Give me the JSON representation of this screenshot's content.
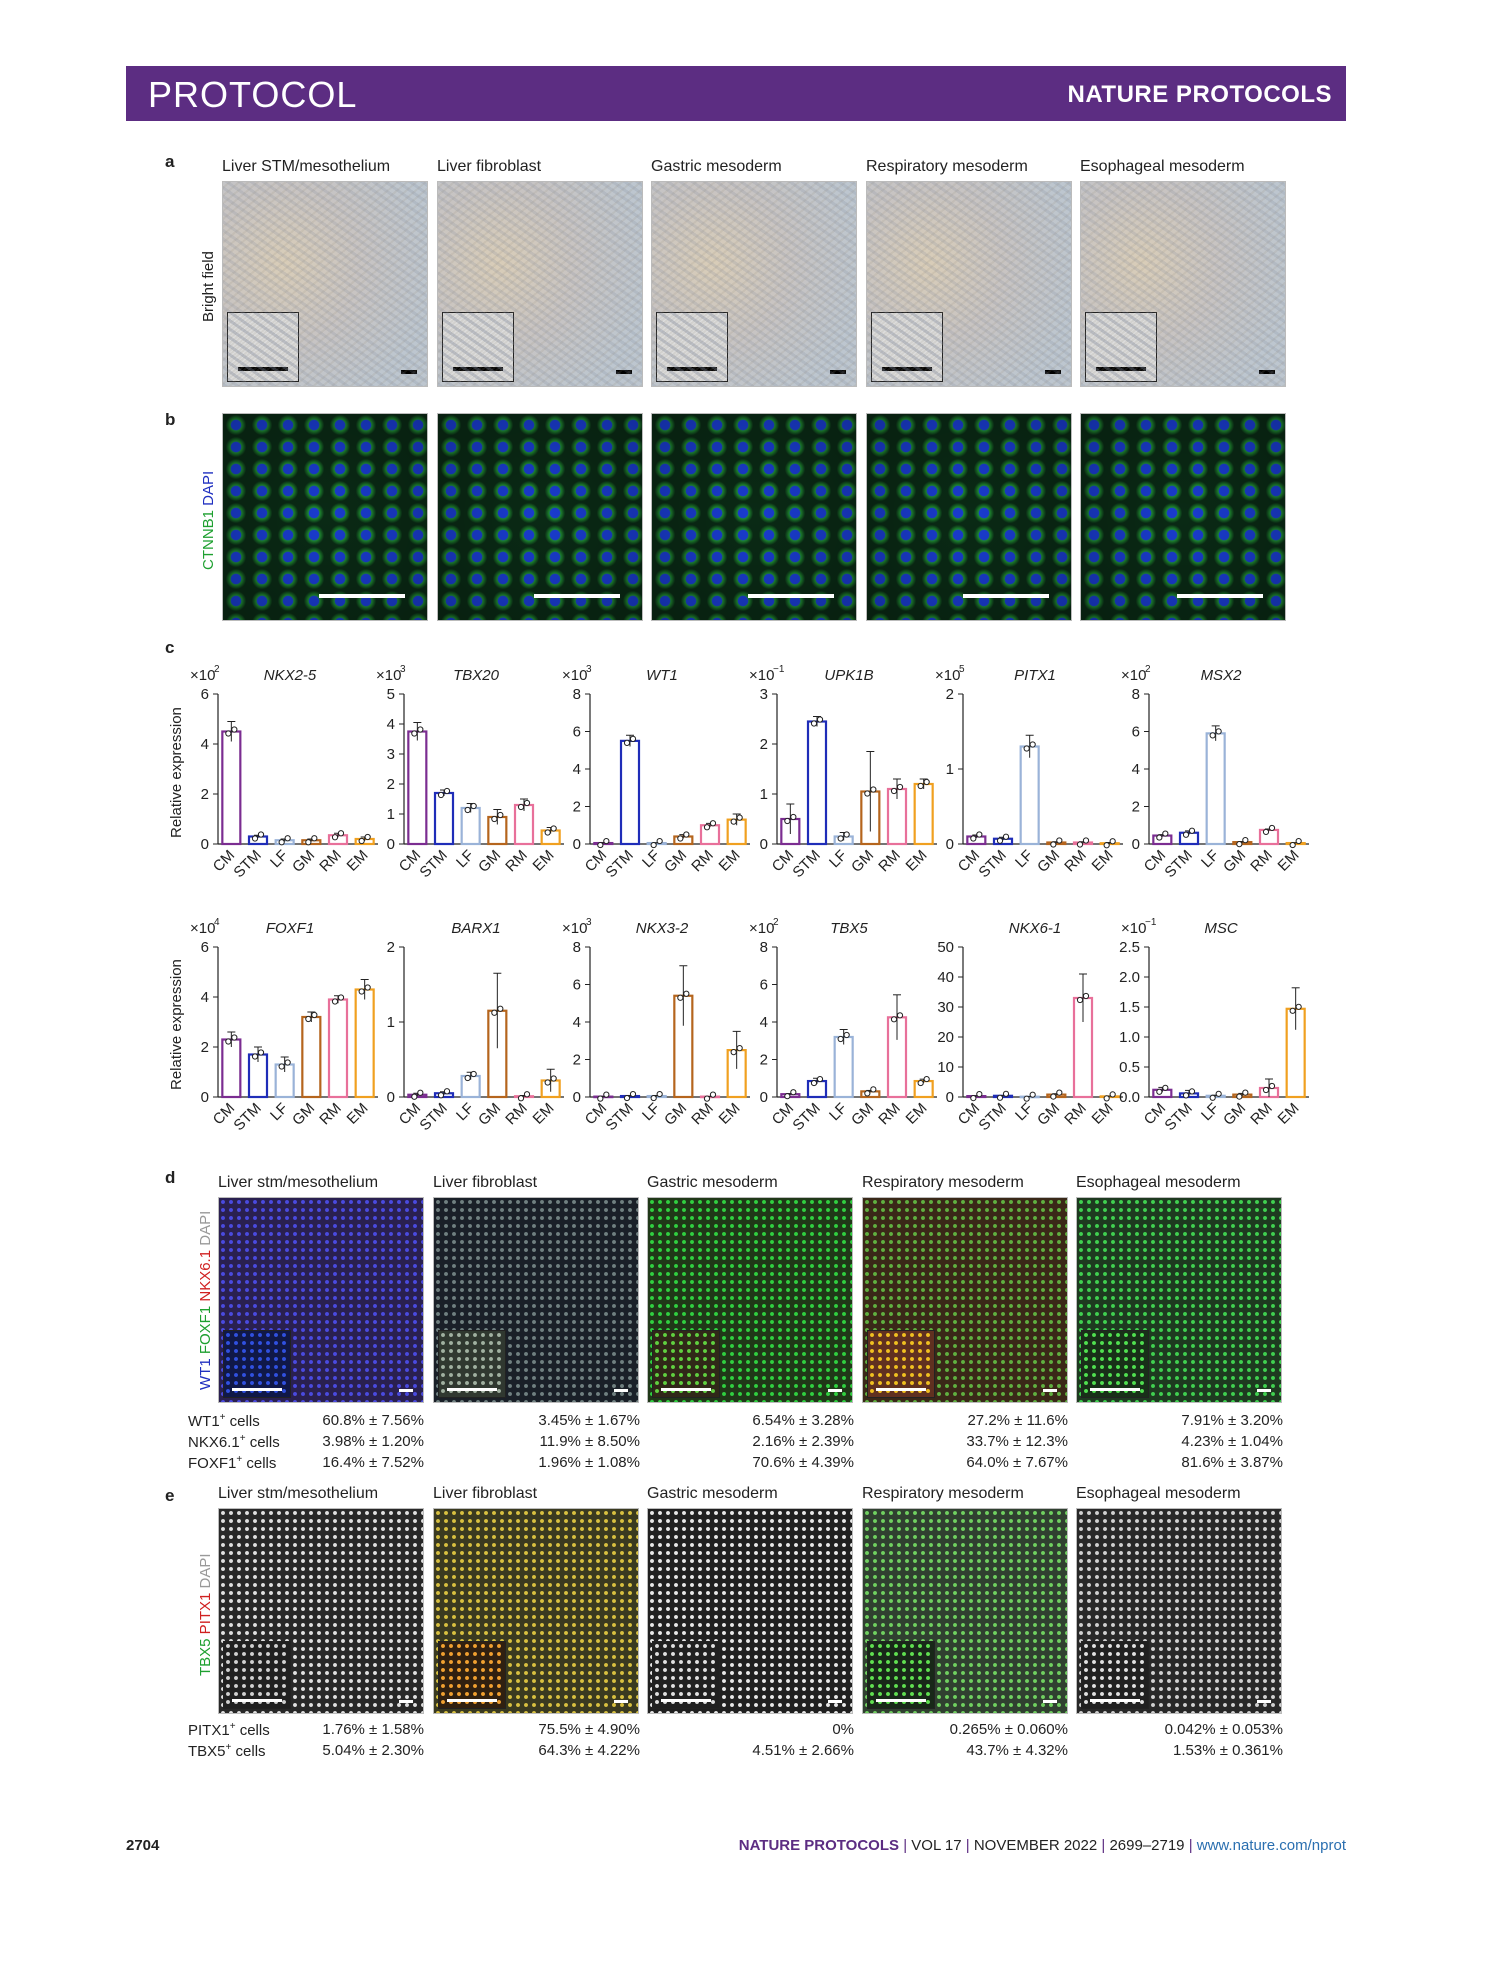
{
  "header": {
    "left": "PROTOCOL",
    "right": "NATURE PROTOCOLS"
  },
  "panel_a": {
    "label": "a",
    "titles": [
      "Liver STM/mesothelium",
      "Liver fibroblast",
      "Gastric mesoderm",
      "Respiratory mesoderm",
      "Esophageal mesoderm"
    ],
    "ylabel": "Bright field"
  },
  "panel_b": {
    "label": "b",
    "ylabel_green": "CTNNB1",
    "ylabel_blue": "DAPI"
  },
  "panel_c": {
    "label": "c",
    "ylabel": "Relative expression"
  },
  "panel_d": {
    "label": "d",
    "titles": [
      "Liver stm/mesothelium",
      "Liver fibroblast",
      "Gastric mesoderm",
      "Respiratory mesoderm",
      "Esophageal mesoderm"
    ],
    "ylabel": {
      "wt1": "WT1",
      "foxf1": "FOXF1",
      "nkx": "NKX6.1",
      "dapi": "DAPI"
    },
    "row_labels": [
      {
        "base": "WT1",
        "sup": "+",
        "rest": " cells"
      },
      {
        "base": "NKX6.1",
        "sup": "+",
        "rest": " cells"
      },
      {
        "base": "FOXF1",
        "sup": "+",
        "rest": " cells"
      }
    ],
    "values": [
      [
        "60.8% ± 7.56%",
        "3.45% ± 1.67%",
        "6.54% ± 3.28%",
        "27.2% ± 11.6%",
        "7.91% ± 3.20%"
      ],
      [
        "3.98% ± 1.20%",
        "11.9% ± 8.50%",
        "2.16% ± 2.39%",
        "33.7% ± 12.3%",
        "4.23% ± 1.04%"
      ],
      [
        "16.4% ± 7.52%",
        "1.96% ± 1.08%",
        "70.6% ± 4.39%",
        "64.0% ± 7.67%",
        "81.6% ± 3.87%"
      ]
    ]
  },
  "panel_e": {
    "label": "e",
    "titles": [
      "Liver stm/mesothelium",
      "Liver fibroblast",
      "Gastric mesoderm",
      "Respiratory mesoderm",
      "Esophageal mesoderm"
    ],
    "ylabel": {
      "tbx5": "TBX5",
      "pitx1": "PITX1",
      "dapi": "DAPI"
    },
    "row_labels": [
      {
        "base": "PITX1",
        "sup": "+",
        "rest": " cells"
      },
      {
        "base": "TBX5",
        "sup": "+",
        "rest": " cells"
      }
    ],
    "values": [
      [
        "1.76% ± 1.58%",
        "75.5% ± 4.90%",
        "0%",
        "0.265% ± 0.060%",
        "0.042% ± 0.053%"
      ],
      [
        "5.04% ± 2.30%",
        "64.3% ± 4.22%",
        "4.51% ± 2.66%",
        "43.7% ± 4.32%",
        "1.53% ± 0.361%"
      ]
    ]
  },
  "footer": {
    "page": "2704",
    "journal": "NATURE PROTOCOLS",
    "vol": "VOL 17",
    "date": "NOVEMBER 2022",
    "pages": "2699–2719",
    "url": "www.nature.com/nprot"
  },
  "colors": {
    "CM": "#7b2d91",
    "STM": "#1f2db8",
    "LF": "#9ab3d8",
    "GM": "#b5651d",
    "RM": "#e8709a",
    "EM": "#f0a020",
    "banner": "#5c2d82"
  },
  "chart_data": [
    {
      "type": "bar",
      "title": "NKX2-5",
      "multiplier": "×10",
      "exp": "2",
      "categories": [
        "CM",
        "STM",
        "LF",
        "GM",
        "RM",
        "EM"
      ],
      "values": [
        4.5,
        0.3,
        0.15,
        0.15,
        0.35,
        0.2
      ],
      "errors": [
        0.4,
        0.05,
        0.05,
        0.05,
        0.08,
        0.08
      ],
      "ylim": [
        0,
        6
      ],
      "yticks": [
        0,
        2,
        4,
        6
      ]
    },
    {
      "type": "bar",
      "title": "TBX20",
      "multiplier": "×10",
      "exp": "3",
      "categories": [
        "CM",
        "STM",
        "LF",
        "GM",
        "RM",
        "EM"
      ],
      "values": [
        3.75,
        1.7,
        1.2,
        0.9,
        1.3,
        0.45
      ],
      "errors": [
        0.3,
        0.1,
        0.15,
        0.25,
        0.2,
        0.1
      ],
      "ylim": [
        0,
        5
      ],
      "yticks": [
        0,
        1,
        2,
        3,
        4,
        5
      ]
    },
    {
      "type": "bar",
      "title": "WT1",
      "multiplier": "×10",
      "exp": "3",
      "categories": [
        "CM",
        "STM",
        "LF",
        "GM",
        "RM",
        "EM"
      ],
      "values": [
        0.05,
        5.5,
        0.05,
        0.4,
        1.0,
        1.3
      ],
      "errors": [
        0.02,
        0.3,
        0.02,
        0.1,
        0.1,
        0.3
      ],
      "ylim": [
        0,
        8
      ],
      "yticks": [
        0,
        2,
        4,
        6,
        8
      ]
    },
    {
      "type": "bar",
      "title": "UPK1B",
      "multiplier": "×10",
      "exp": "−1",
      "categories": [
        "CM",
        "STM",
        "LF",
        "GM",
        "RM",
        "EM"
      ],
      "values": [
        0.5,
        2.45,
        0.15,
        1.05,
        1.1,
        1.2
      ],
      "errors": [
        0.3,
        0.1,
        0.08,
        0.8,
        0.2,
        0.1
      ],
      "ylim": [
        0,
        3
      ],
      "yticks": [
        0,
        1,
        2,
        3
      ]
    },
    {
      "type": "bar",
      "title": "PITX1",
      "multiplier": "×10",
      "exp": "5",
      "categories": [
        "CM",
        "STM",
        "LF",
        "GM",
        "RM",
        "EM"
      ],
      "values": [
        0.1,
        0.07,
        1.3,
        0.02,
        0.02,
        0.01
      ],
      "errors": [
        0.02,
        0.02,
        0.15,
        0.01,
        0.01,
        0.01
      ],
      "ylim": [
        0,
        2
      ],
      "yticks": [
        0,
        1,
        2
      ]
    },
    {
      "type": "bar",
      "title": "MSX2",
      "multiplier": "×10",
      "exp": "2",
      "categories": [
        "CM",
        "STM",
        "LF",
        "GM",
        "RM",
        "EM"
      ],
      "values": [
        0.45,
        0.6,
        5.9,
        0.1,
        0.75,
        0.05
      ],
      "errors": [
        0.05,
        0.1,
        0.4,
        0.03,
        0.05,
        0.02
      ],
      "ylim": [
        0,
        8
      ],
      "yticks": [
        0,
        2,
        4,
        6,
        8
      ]
    },
    {
      "type": "bar",
      "title": "FOXF1",
      "multiplier": "×10",
      "exp": "4",
      "categories": [
        "CM",
        "STM",
        "LF",
        "GM",
        "RM",
        "EM"
      ],
      "values": [
        2.3,
        1.7,
        1.3,
        3.2,
        3.9,
        4.3
      ],
      "errors": [
        0.3,
        0.3,
        0.3,
        0.2,
        0.15,
        0.4
      ],
      "ylim": [
        0,
        6
      ],
      "yticks": [
        0,
        2,
        4,
        6
      ]
    },
    {
      "type": "bar",
      "title": "BARX1",
      "multiplier": "",
      "exp": "",
      "categories": [
        "CM",
        "STM",
        "LF",
        "GM",
        "RM",
        "EM"
      ],
      "values": [
        0.03,
        0.05,
        0.28,
        1.15,
        0.01,
        0.22
      ],
      "errors": [
        0.02,
        0.02,
        0.05,
        0.5,
        0.01,
        0.15
      ],
      "ylim": [
        0,
        2
      ],
      "yticks": [
        0,
        1,
        2
      ]
    },
    {
      "type": "bar",
      "title": "NKX3-2",
      "multiplier": "×10",
      "exp": "3",
      "categories": [
        "CM",
        "STM",
        "LF",
        "GM",
        "RM",
        "EM"
      ],
      "values": [
        0.02,
        0.05,
        0.05,
        5.4,
        0.02,
        2.5
      ],
      "errors": [
        0.01,
        0.03,
        0.03,
        1.6,
        0.01,
        1.0
      ],
      "ylim": [
        0,
        8
      ],
      "yticks": [
        0,
        2,
        4,
        6,
        8
      ]
    },
    {
      "type": "bar",
      "title": "TBX5",
      "multiplier": "×10",
      "exp": "2",
      "categories": [
        "CM",
        "STM",
        "LF",
        "GM",
        "RM",
        "EM"
      ],
      "values": [
        0.15,
        0.85,
        3.2,
        0.3,
        4.25,
        0.85
      ],
      "errors": [
        0.03,
        0.15,
        0.4,
        0.05,
        1.2,
        0.1
      ],
      "ylim": [
        0,
        8
      ],
      "yticks": [
        0,
        2,
        4,
        6,
        8
      ]
    },
    {
      "type": "bar",
      "title": "NKX6-1",
      "multiplier": "",
      "exp": "",
      "categories": [
        "CM",
        "STM",
        "LF",
        "GM",
        "RM",
        "EM"
      ],
      "values": [
        0.3,
        0.4,
        0.1,
        0.8,
        33,
        0.2
      ],
      "errors": [
        0.1,
        0.1,
        0.05,
        0.3,
        8,
        0.1
      ],
      "ylim": [
        0,
        50
      ],
      "yticks": [
        0,
        10,
        20,
        30,
        40,
        50
      ]
    },
    {
      "type": "bar",
      "title": "MSC",
      "multiplier": "×10",
      "exp": "−1",
      "categories": [
        "CM",
        "STM",
        "LF",
        "GM",
        "RM",
        "EM"
      ],
      "values": [
        0.12,
        0.06,
        0.02,
        0.04,
        0.15,
        1.47
      ],
      "errors": [
        0.04,
        0.05,
        0.01,
        0.02,
        0.15,
        0.35
      ],
      "ylim": [
        0,
        2.5
      ],
      "yticks": [
        0,
        0.5,
        1.0,
        1.5,
        2.0,
        2.5
      ]
    }
  ]
}
